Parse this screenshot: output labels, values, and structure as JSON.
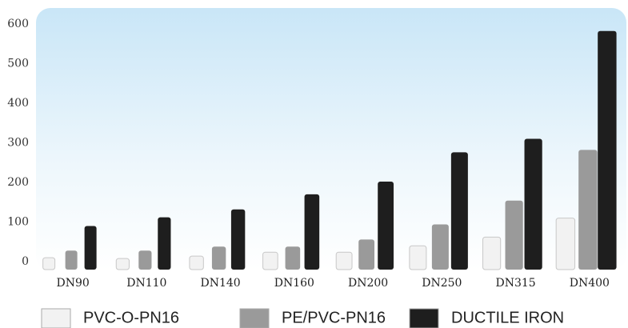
{
  "chart_data": {
    "type": "bar",
    "categories": [
      "DN90",
      "DN110",
      "DN140",
      "DN160",
      "DN200",
      "DN250",
      "DN315",
      "DN400"
    ],
    "series": [
      {
        "name": "PVC-O-PN16",
        "color": "#f2f2f2",
        "values": [
          10,
          8,
          14,
          24,
          24,
          40,
          62,
          110
        ]
      },
      {
        "name": "PE/PVC-PN16",
        "color": "#9a9a9a",
        "values": [
          28,
          28,
          38,
          38,
          56,
          94,
          154,
          282
        ]
      },
      {
        "name": "DUCTILE IRON",
        "color": "#1e1e1e",
        "values": [
          90,
          112,
          132,
          170,
          202,
          276,
          310,
          582
        ]
      }
    ],
    "ylim": [
      -20,
      640
    ],
    "yticks": [
      0,
      100,
      200,
      300,
      400,
      500,
      600
    ],
    "grid": false
  }
}
